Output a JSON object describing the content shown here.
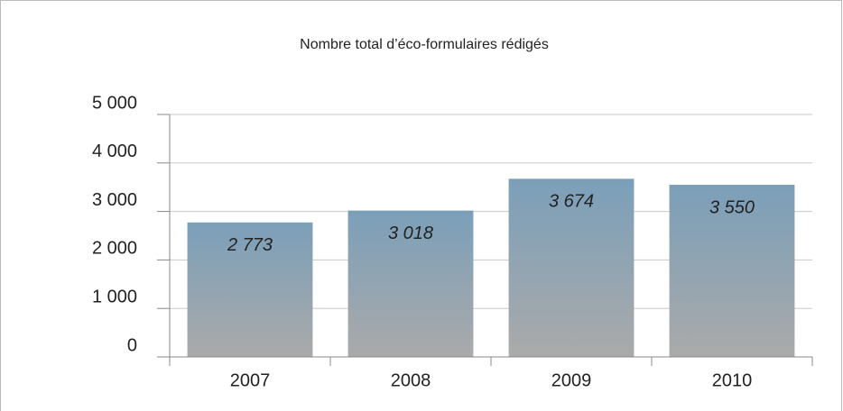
{
  "chart_data": {
    "type": "bar",
    "title": "Nombre total d’éco-formulaires rédigés",
    "categories": [
      "2007",
      "2008",
      "2009",
      "2010"
    ],
    "values": [
      2773,
      3018,
      3674,
      3550
    ],
    "value_labels": [
      "2 773",
      "3 018",
      "3 674",
      "3 550"
    ],
    "color": "#7b9fb9",
    "ylim": [
      0,
      5000
    ],
    "yticks": [
      0,
      {
        "value": 1000,
        "label": "1 000"
      },
      {
        "value": 2000,
        "label": "2 000"
      },
      {
        "value": 3000,
        "label": "3 000"
      },
      {
        "value": 4000,
        "label": "4 000"
      },
      {
        "value": 5000,
        "label": "5 000"
      }
    ],
    "grid": true
  }
}
